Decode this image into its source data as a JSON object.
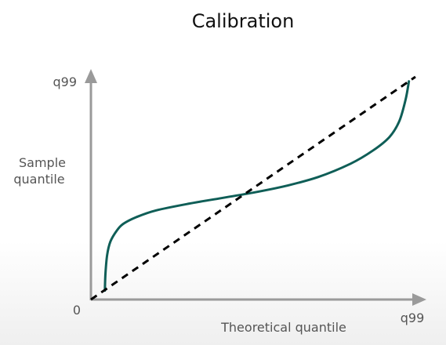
{
  "chart_data": {
    "type": "line",
    "title": "Calibration",
    "xlabel": "Theoretical quantile",
    "ylabel_line1": "Sample",
    "ylabel_line2": "quantile",
    "x_tick_start": "0",
    "x_tick_end": "q99",
    "y_tick_end": "q99",
    "xlim": [
      0,
      1
    ],
    "ylim": [
      0,
      1
    ],
    "grid": false,
    "series": [
      {
        "color": "#0f5e57",
        "x": [
          0.043,
          0.045,
          0.05,
          0.06,
          0.08,
          0.1,
          0.14,
          0.2,
          0.3,
          0.4,
          0.5,
          0.6,
          0.7,
          0.8,
          0.87,
          0.92,
          0.95,
          0.97,
          0.98
        ],
        "y": [
          0.04,
          0.12,
          0.2,
          0.26,
          0.31,
          0.34,
          0.37,
          0.4,
          0.43,
          0.455,
          0.48,
          0.51,
          0.55,
          0.61,
          0.67,
          0.73,
          0.8,
          0.9,
          0.98
        ]
      },
      {
        "style": "dashed",
        "color": "#000000",
        "x": [
          0,
          1
        ],
        "y": [
          0,
          1
        ]
      }
    ]
  },
  "colors": {
    "axis": "#9a9a9a",
    "curve": "#0f5e57",
    "reference": "#000000"
  }
}
